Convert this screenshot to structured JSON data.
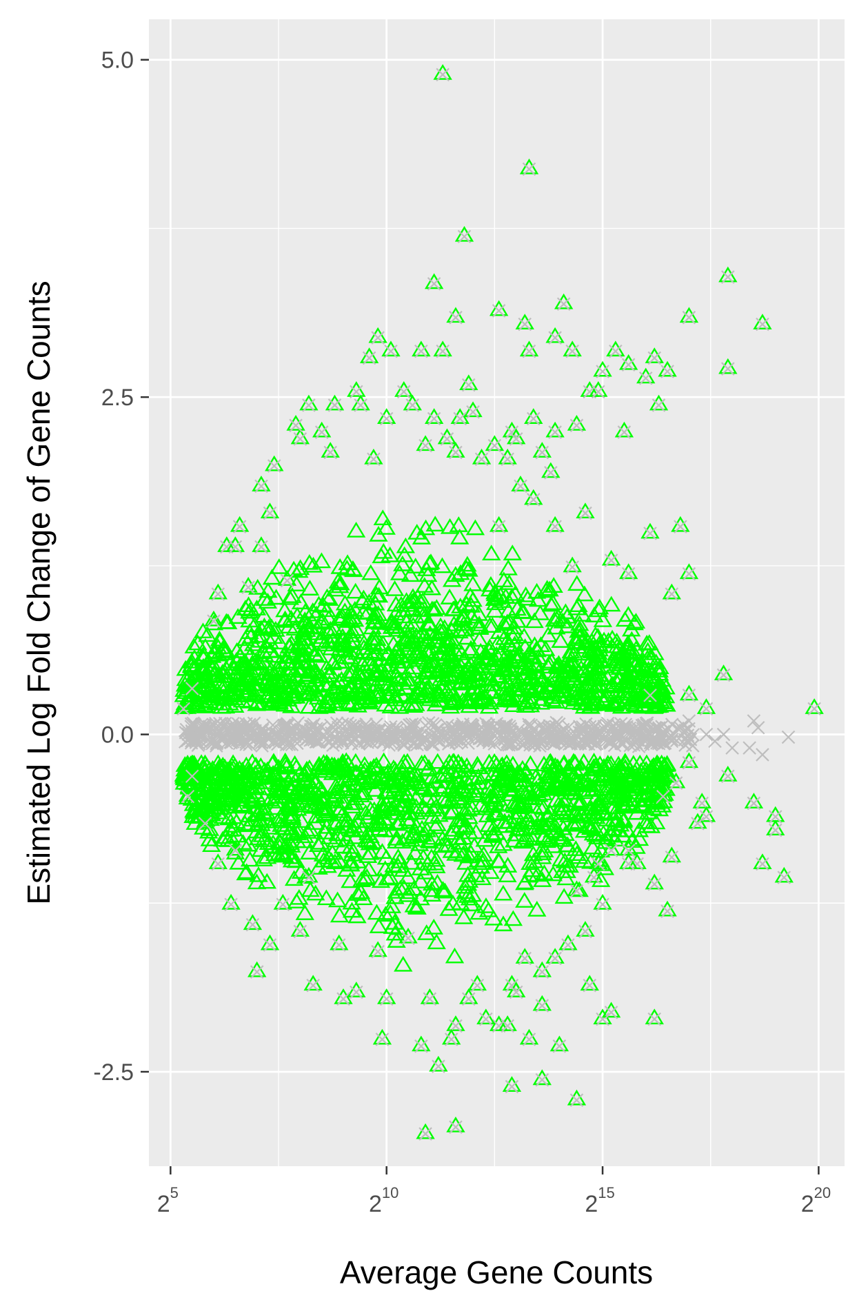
{
  "chart_data": {
    "type": "scatter",
    "title": "",
    "xlabel": "Average Gene Counts",
    "ylabel": "Estimated Log Fold Change of Gene Counts",
    "x_scale": "log2",
    "xlim_log2": [
      4.5,
      20.6
    ],
    "ylim": [
      -3.2,
      5.3
    ],
    "x_ticks": [
      {
        "base": "2",
        "exp": "5",
        "log2": 5
      },
      {
        "base": "2",
        "exp": "10",
        "log2": 10
      },
      {
        "base": "2",
        "exp": "15",
        "log2": 15
      },
      {
        "base": "2",
        "exp": "20",
        "log2": 20
      }
    ],
    "y_ticks": [
      {
        "label": "5.0",
        "value": 5.0
      },
      {
        "label": "2.5",
        "value": 2.5
      },
      {
        "label": "0.0",
        "value": 0.0
      },
      {
        "label": "-2.5",
        "value": -2.5
      }
    ],
    "grid": true,
    "legend": "none",
    "colors": {
      "panel": "#ebebeb",
      "grid": "#ffffff",
      "significant": "#00ff00",
      "all_genes": "#bebebe"
    },
    "series": [
      {
        "marker": "triangle",
        "color": "#00ff00",
        "points": [
          [
            11.3,
            4.9
          ],
          [
            13.3,
            4.2
          ],
          [
            11.8,
            3.7
          ],
          [
            11.1,
            3.35
          ],
          [
            11.6,
            3.1
          ],
          [
            12.6,
            3.15
          ],
          [
            13.2,
            3.05
          ],
          [
            14.1,
            3.2
          ],
          [
            13.3,
            2.85
          ],
          [
            13.9,
            2.95
          ],
          [
            14.3,
            2.85
          ],
          [
            15.3,
            2.85
          ],
          [
            15.6,
            2.75
          ],
          [
            15.0,
            2.7
          ],
          [
            16.2,
            2.8
          ],
          [
            16.0,
            2.65
          ],
          [
            17.0,
            3.1
          ],
          [
            17.9,
            3.4
          ],
          [
            18.7,
            3.05
          ],
          [
            17.9,
            2.72
          ],
          [
            9.8,
            2.95
          ],
          [
            10.1,
            2.85
          ],
          [
            9.6,
            2.8
          ],
          [
            10.8,
            2.85
          ],
          [
            11.3,
            2.85
          ],
          [
            11.9,
            2.6
          ],
          [
            10.4,
            2.55
          ],
          [
            10.6,
            2.45
          ],
          [
            9.3,
            2.55
          ],
          [
            9.4,
            2.45
          ],
          [
            8.2,
            2.45
          ],
          [
            8.8,
            2.45
          ],
          [
            12.0,
            2.4
          ],
          [
            11.7,
            2.35
          ],
          [
            11.1,
            2.35
          ],
          [
            12.9,
            2.25
          ],
          [
            13.4,
            2.35
          ],
          [
            13.0,
            2.2
          ],
          [
            13.9,
            2.25
          ],
          [
            14.4,
            2.3
          ],
          [
            15.5,
            2.25
          ],
          [
            12.5,
            2.15
          ],
          [
            11.4,
            2.2
          ],
          [
            12.2,
            2.05
          ],
          [
            12.8,
            2.05
          ],
          [
            13.6,
            2.1
          ],
          [
            11.6,
            2.1
          ],
          [
            10.9,
            2.15
          ],
          [
            16.5,
            2.7
          ],
          [
            16.3,
            2.45
          ],
          [
            14.7,
            2.55
          ],
          [
            14.9,
            2.55
          ],
          [
            10.0,
            2.35
          ],
          [
            9.7,
            2.05
          ],
          [
            8.7,
            2.1
          ],
          [
            7.4,
            2.0
          ],
          [
            8.0,
            2.2
          ],
          [
            7.9,
            2.3
          ],
          [
            8.5,
            2.25
          ],
          [
            16.1,
            1.5
          ],
          [
            16.8,
            1.55
          ],
          [
            17.0,
            1.2
          ],
          [
            16.6,
            1.05
          ],
          [
            17.8,
            0.45
          ],
          [
            19.9,
            0.2
          ],
          [
            17.0,
            0.3
          ],
          [
            17.4,
            0.2
          ],
          [
            16.1,
            0.3
          ],
          [
            15.2,
            1.3
          ],
          [
            15.6,
            1.2
          ],
          [
            14.3,
            1.25
          ],
          [
            14.6,
            1.65
          ],
          [
            13.9,
            1.55
          ],
          [
            13.4,
            1.75
          ],
          [
            12.6,
            1.55
          ],
          [
            13.8,
            1.95
          ],
          [
            13.1,
            1.85
          ],
          [
            6.6,
            1.55
          ],
          [
            6.3,
            1.4
          ],
          [
            6.5,
            1.4
          ],
          [
            6.0,
            0.85
          ],
          [
            5.5,
            0.35
          ],
          [
            5.3,
            0.2
          ],
          [
            6.1,
            1.05
          ],
          [
            7.1,
            1.85
          ],
          [
            7.3,
            1.65
          ],
          [
            7.1,
            1.4
          ],
          [
            7.7,
            1.15
          ],
          [
            6.8,
            1.1
          ],
          [
            18.5,
            -0.5
          ],
          [
            19.0,
            -0.6
          ],
          [
            19.0,
            -0.7
          ],
          [
            18.7,
            -0.95
          ],
          [
            19.2,
            -1.05
          ],
          [
            17.9,
            -0.3
          ],
          [
            17.3,
            -0.5
          ],
          [
            17.4,
            -0.6
          ],
          [
            17.2,
            -0.65
          ],
          [
            17.0,
            -0.2
          ],
          [
            16.4,
            -0.45
          ],
          [
            16.6,
            -0.9
          ],
          [
            16.2,
            -1.1
          ],
          [
            16.5,
            -1.3
          ],
          [
            16.7,
            -0.35
          ],
          [
            15.6,
            -0.85
          ],
          [
            15.8,
            -0.95
          ],
          [
            15.2,
            -0.85
          ],
          [
            14.9,
            -0.95
          ],
          [
            15.0,
            -1.25
          ],
          [
            14.8,
            -1.05
          ],
          [
            14.4,
            -1.15
          ],
          [
            14.6,
            -1.45
          ],
          [
            14.2,
            -1.55
          ],
          [
            14.7,
            -1.85
          ],
          [
            13.9,
            -1.65
          ],
          [
            13.6,
            -1.75
          ],
          [
            13.2,
            -1.65
          ],
          [
            12.9,
            -1.85
          ],
          [
            13.6,
            -2.0
          ],
          [
            13.3,
            -2.25
          ],
          [
            14.0,
            -2.3
          ],
          [
            13.6,
            -2.55
          ],
          [
            12.6,
            -2.15
          ],
          [
            12.8,
            -2.15
          ],
          [
            12.3,
            -2.1
          ],
          [
            12.9,
            -2.6
          ],
          [
            11.6,
            -2.15
          ],
          [
            11.5,
            -2.25
          ],
          [
            10.8,
            -2.3
          ],
          [
            11.2,
            -2.45
          ],
          [
            11.6,
            -2.9
          ],
          [
            10.9,
            -2.95
          ],
          [
            9.9,
            -2.25
          ],
          [
            10.0,
            -1.95
          ],
          [
            11.0,
            -1.95
          ],
          [
            11.9,
            -1.95
          ],
          [
            12.1,
            -1.85
          ],
          [
            13.0,
            -1.9
          ],
          [
            14.4,
            -2.7
          ],
          [
            15.0,
            -2.1
          ],
          [
            15.2,
            -2.05
          ],
          [
            16.2,
            -2.1
          ],
          [
            15.6,
            -0.95
          ],
          [
            8.3,
            -1.85
          ],
          [
            7.0,
            -1.75
          ],
          [
            6.4,
            -1.25
          ],
          [
            6.9,
            -1.4
          ],
          [
            6.5,
            -0.85
          ],
          [
            5.8,
            -0.65
          ],
          [
            5.4,
            -0.45
          ],
          [
            5.5,
            -0.3
          ],
          [
            9.3,
            -1.9
          ],
          [
            9.0,
            -1.95
          ],
          [
            9.8,
            -1.6
          ],
          [
            10.5,
            -1.5
          ],
          [
            8.9,
            -1.55
          ],
          [
            7.6,
            -1.25
          ],
          [
            8.2,
            -1.05
          ],
          [
            6.1,
            -0.95
          ],
          [
            7.3,
            -1.55
          ],
          [
            8.0,
            -1.45
          ]
        ]
      },
      {
        "marker": "cross",
        "color": "#bebebe",
        "points": [
          [
            17.6,
            -0.05
          ],
          [
            18.0,
            -0.1
          ],
          [
            18.5,
            0.1
          ],
          [
            18.6,
            0.05
          ],
          [
            19.3,
            -0.02
          ],
          [
            18.7,
            -0.15
          ],
          [
            17.4,
            0.0
          ],
          [
            17.0,
            0.1
          ],
          [
            16.8,
            0.05
          ],
          [
            16.6,
            -0.05
          ],
          [
            17.8,
            0.0
          ],
          [
            18.4,
            -0.1
          ]
        ]
      }
    ]
  }
}
